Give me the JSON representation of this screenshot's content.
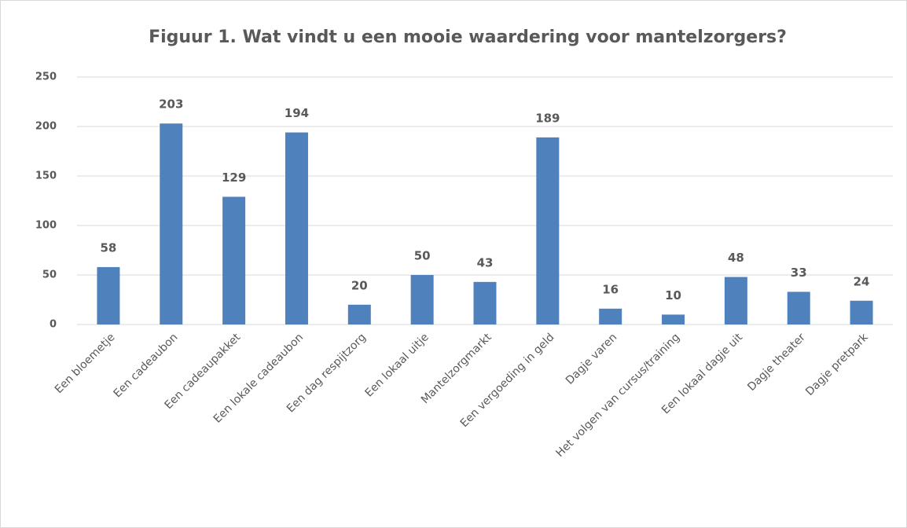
{
  "chart_data": {
    "type": "bar",
    "title": "Figuur 1. Wat vindt u een mooie waardering voor mantelzorgers?",
    "categories": [
      "Een bloemetje",
      "Een cadeaubon",
      "Een cadeaupakket",
      "Een lokale cadeaubon",
      "Een dag respijtzorg",
      "Een lokaal uitje",
      "Mantelzorgmarkt",
      "Een vergoeding in geld",
      "Dagje varen",
      "Het volgen van cursus/training",
      "Een lokaal dagje uit",
      "Dagje theater",
      "Dagje pretpark"
    ],
    "values": [
      58,
      203,
      129,
      194,
      20,
      50,
      43,
      189,
      16,
      10,
      48,
      33,
      24
    ],
    "color": "#4f81bd",
    "ylim": [
      0,
      250
    ],
    "yticks": [
      0,
      50,
      100,
      150,
      200,
      250
    ],
    "grid": true
  }
}
